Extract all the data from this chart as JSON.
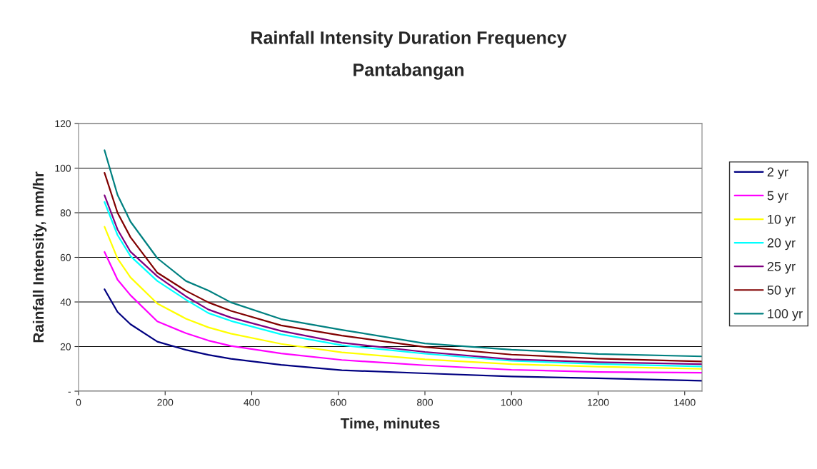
{
  "chart_data": {
    "type": "line",
    "title": "Rainfall Intensity Duration Frequency",
    "subtitle": "Pantabangan",
    "xlabel": "Time, minutes",
    "ylabel": "Rainfall Intensity, mm/hr",
    "x": [
      60,
      90,
      120,
      182,
      248,
      300,
      352,
      468,
      608,
      800,
      1000,
      1200,
      1440
    ],
    "series": [
      {
        "name": "2 yr",
        "color": "#000080",
        "values": [
          45.7,
          35.5,
          30,
          22.2,
          18.5,
          16.3,
          14.5,
          11.8,
          9.4,
          8.0,
          6.6,
          5.8,
          4.7
        ]
      },
      {
        "name": "5 yr",
        "color": "#ff00ff",
        "values": [
          62.4,
          50,
          43,
          31.3,
          26,
          22.7,
          20.3,
          16.9,
          14.0,
          11.6,
          9.6,
          8.6,
          8.3
        ]
      },
      {
        "name": "10 yr",
        "color": "#ffff00",
        "values": [
          73.7,
          59.5,
          51,
          39.3,
          32.5,
          28.6,
          25.8,
          21.2,
          17.4,
          14.3,
          12.1,
          11.0,
          10.0
        ]
      },
      {
        "name": "20 yr",
        "color": "#00ffff",
        "values": [
          84.8,
          70,
          60.5,
          49.4,
          41,
          35.0,
          31.5,
          25.5,
          20.6,
          16.8,
          13.6,
          12.2,
          11.1
        ]
      },
      {
        "name": "25 yr",
        "color": "#800080",
        "values": [
          87.8,
          72.5,
          62.5,
          51.5,
          42.5,
          36.6,
          33,
          27,
          21.7,
          17.6,
          14.3,
          13.0,
          12.1
        ]
      },
      {
        "name": "50 yr",
        "color": "#800000",
        "values": [
          97.9,
          80,
          69,
          53.1,
          45,
          39.8,
          36,
          29.5,
          24.9,
          19.8,
          16.4,
          14.6,
          13.3
        ]
      },
      {
        "name": "100 yr",
        "color": "#008080",
        "values": [
          108,
          88,
          76,
          59.6,
          49.4,
          45.1,
          39.8,
          32.3,
          27.5,
          21.4,
          18.6,
          16.7,
          15.6
        ]
      }
    ],
    "xlim": [
      0,
      1440
    ],
    "xticks": [
      0,
      200,
      400,
      600,
      800,
      1000,
      1200,
      1400
    ],
    "ylim": [
      0,
      120
    ],
    "yticks": [
      {
        "value": 0,
        "label": "-"
      },
      20,
      40,
      60,
      80,
      100,
      120
    ],
    "grid": "y",
    "legend": "right",
    "marker": "none",
    "line_style": "solid"
  }
}
